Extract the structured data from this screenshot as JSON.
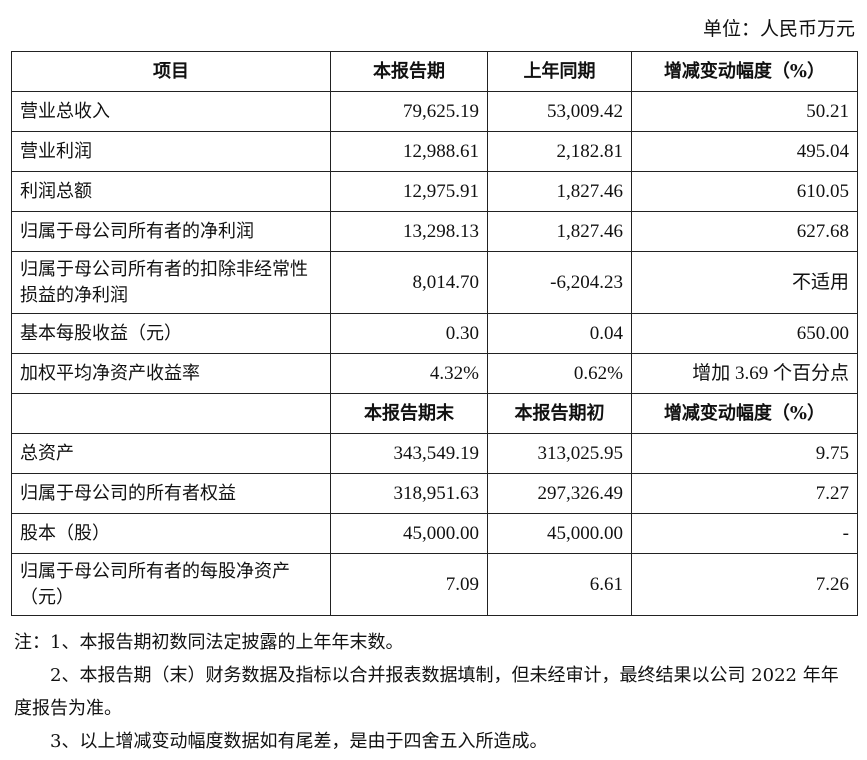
{
  "unit": "单位：人民币万元",
  "header1": [
    "项目",
    "本报告期",
    "上年同期",
    "增减变动幅度（%）"
  ],
  "rows1": [
    [
      "营业总收入",
      "79,625.19",
      "53,009.42",
      "50.21"
    ],
    [
      "营业利润",
      "12,988.61",
      "2,182.81",
      "495.04"
    ],
    [
      "利润总额",
      "12,975.91",
      "1,827.46",
      "610.05"
    ],
    [
      "归属于母公司所有者的净利润",
      "13,298.13",
      "1,827.46",
      "627.68"
    ],
    [
      "归属于母公司所有者的扣除非经常性损益的净利润",
      "8,014.70",
      "-6,204.23",
      "不适用"
    ],
    [
      "基本每股收益（元）",
      "0.30",
      "0.04",
      "650.00"
    ],
    [
      "加权平均净资产收益率",
      "4.32%",
      "0.62%",
      "增加 3.69 个百分点"
    ]
  ],
  "header2": [
    "",
    "本报告期末",
    "本报告期初",
    "增减变动幅度（%）"
  ],
  "rows2": [
    [
      "总资产",
      "343,549.19",
      "313,025.95",
      "9.75"
    ],
    [
      "归属于母公司的所有者权益",
      "318,951.63",
      "297,326.49",
      "7.27"
    ],
    [
      "股本（股）",
      "45,000.00",
      "45,000.00",
      "-"
    ],
    [
      "归属于母公司所有者的每股净资产（元）",
      "7.09",
      "6.61",
      "7.26"
    ]
  ],
  "notes": [
    "注：1、本报告期初数同法定披露的上年年末数。",
    "2、本报告期（末）财务数据及指标以合并报表数据填制，但未经审计，最终结果以公司 2022 年年度报告为准。",
    "3、以上增减变动幅度数据如有尾差，是由于四舍五入所造成。"
  ]
}
